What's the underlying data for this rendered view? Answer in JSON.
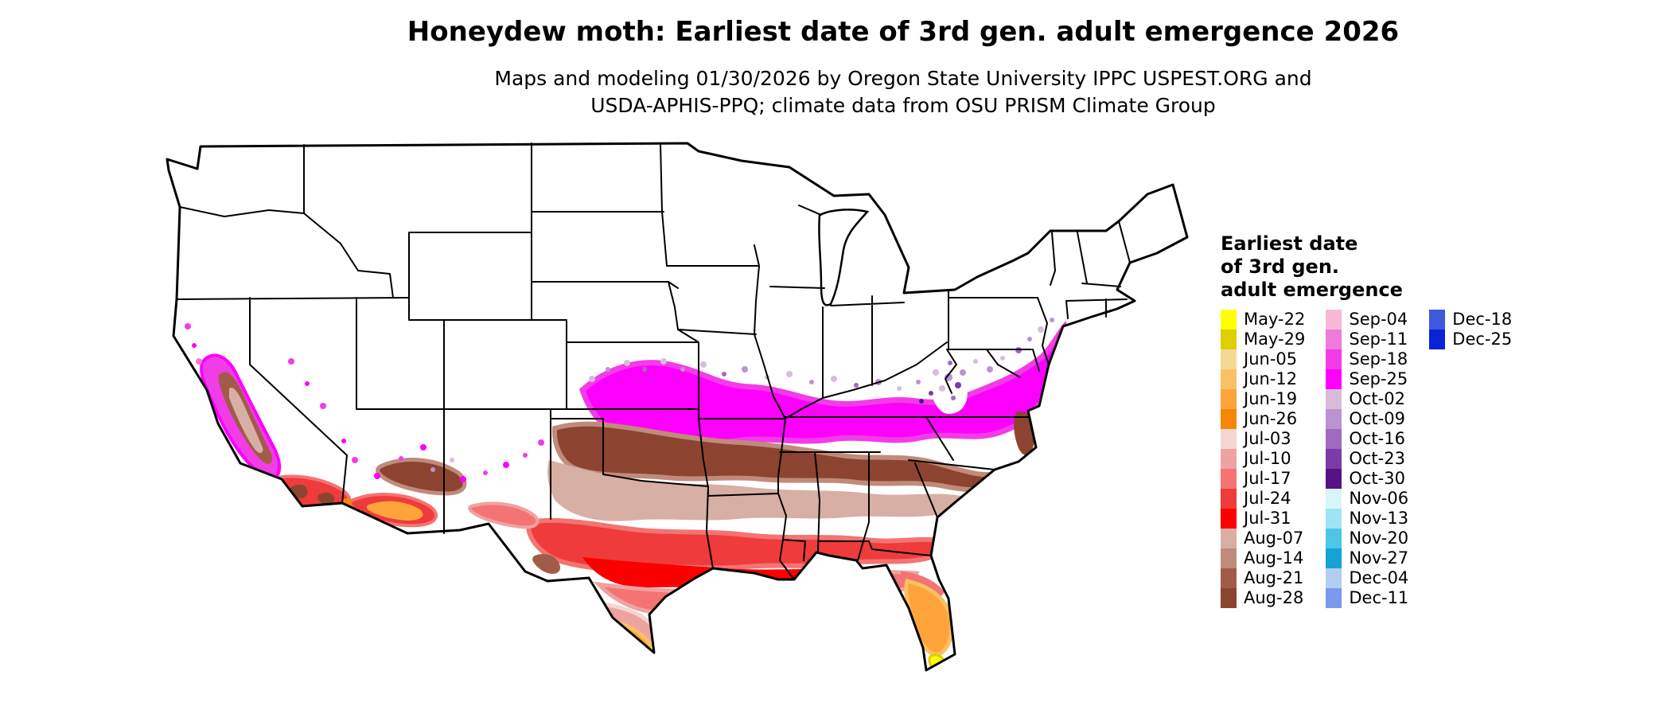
{
  "title": "Honeydew moth: Earliest date of 3rd gen. adult emergence 2026",
  "subtitle_line1": "Maps and modeling 01/30/2026 by Oregon State University IPPC USPEST.ORG and",
  "subtitle_line2": "USDA-APHIS-PPQ; climate data from OSU PRISM Climate Group",
  "map": {
    "description": "Contiguous United States choropleth map of earliest date of 3rd generation adult emergence for honeydew moth, 2026"
  },
  "legend": {
    "title_lines": [
      "Earliest date",
      "of 3rd gen.",
      "adult emergence"
    ],
    "columns": [
      [
        {
          "label": "May-22",
          "color": "#FFFF00"
        },
        {
          "label": "May-29",
          "color": "#DFCE00"
        },
        {
          "label": "Jun-05",
          "color": "#F3DA95"
        },
        {
          "label": "Jun-12",
          "color": "#FAC064"
        },
        {
          "label": "Jun-19",
          "color": "#FFA43B"
        },
        {
          "label": "Jun-26",
          "color": "#F58705"
        },
        {
          "label": "Jul-03",
          "color": "#F4D7D2"
        },
        {
          "label": "Jul-10",
          "color": "#EFA2A2"
        },
        {
          "label": "Jul-17",
          "color": "#F47373"
        },
        {
          "label": "Jul-24",
          "color": "#EF3B3B"
        },
        {
          "label": "Jul-31",
          "color": "#FB0000"
        },
        {
          "label": "Aug-07",
          "color": "#D8AFA4"
        },
        {
          "label": "Aug-14",
          "color": "#C08B7B"
        },
        {
          "label": "Aug-21",
          "color": "#A15C49"
        },
        {
          "label": "Aug-28",
          "color": "#8C4430"
        }
      ],
      [
        {
          "label": "Sep-04",
          "color": "#F9B7D8"
        },
        {
          "label": "Sep-11",
          "color": "#F07ADC"
        },
        {
          "label": "Sep-18",
          "color": "#F23CE8"
        },
        {
          "label": "Sep-25",
          "color": "#FD00FD"
        },
        {
          "label": "Oct-02",
          "color": "#D9BBDC"
        },
        {
          "label": "Oct-09",
          "color": "#BC93D1"
        },
        {
          "label": "Oct-16",
          "color": "#9F6AC0"
        },
        {
          "label": "Oct-23",
          "color": "#7C3BA5"
        },
        {
          "label": "Oct-30",
          "color": "#571285"
        },
        {
          "label": "Nov-06",
          "color": "#D8F6F9"
        },
        {
          "label": "Nov-13",
          "color": "#9FE4F2"
        },
        {
          "label": "Nov-20",
          "color": "#4EC6E8"
        },
        {
          "label": "Nov-27",
          "color": "#14A3D3"
        },
        {
          "label": "Dec-04",
          "color": "#B3CDF0"
        },
        {
          "label": "Dec-11",
          "color": "#7C99EA"
        }
      ],
      [
        {
          "label": "Dec-18",
          "color": "#4157DE"
        },
        {
          "label": "Dec-25",
          "color": "#0A23D6"
        }
      ]
    ]
  }
}
